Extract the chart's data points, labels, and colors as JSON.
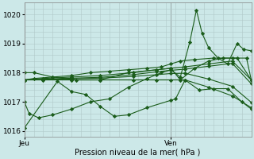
{
  "background_color": "#cce8e8",
  "grid_color": "#b0c8c8",
  "line_color": "#1a5c1a",
  "marker_color": "#1a5c1a",
  "xlabel": "Pression niveau de la mer( hPa )",
  "ylim": [
    1015.8,
    1020.4
  ],
  "yticks": [
    1016,
    1017,
    1018,
    1019,
    1020
  ],
  "xlim": [
    0,
    24
  ],
  "x_jeu": 0,
  "x_ven": 15.5,
  "xtick_pos": [
    0,
    15.5
  ],
  "xtick_labels": [
    "Jeu",
    "Ven"
  ],
  "series": [
    {
      "x": [
        0,
        0.5,
        1.5,
        3,
        5,
        7,
        9,
        11,
        13,
        14.5,
        15.5,
        16.5,
        17.5,
        18.2,
        18.8,
        19.5,
        20.5,
        21.5,
        22.5,
        23.2,
        24
      ],
      "y": [
        1017.0,
        1016.6,
        1016.45,
        1016.55,
        1016.75,
        1017.0,
        1017.1,
        1017.5,
        1017.8,
        1018.0,
        1018.1,
        1017.85,
        1019.05,
        1020.15,
        1019.35,
        1018.85,
        1018.5,
        1018.3,
        1019.0,
        1018.8,
        1018.75
      ]
    },
    {
      "x": [
        0,
        1,
        3,
        5.5,
        8,
        11,
        14,
        15.5,
        16.5,
        18,
        19.5,
        21,
        22.5,
        24
      ],
      "y": [
        1018.0,
        1018.0,
        1017.85,
        1017.75,
        1017.75,
        1018.0,
        1018.1,
        1018.15,
        1017.75,
        1018.15,
        1018.4,
        1018.5,
        1018.5,
        1017.75
      ]
    },
    {
      "x": [
        0,
        2,
        5,
        8,
        11.5,
        14,
        15.5,
        17,
        19.5,
        22,
        24
      ],
      "y": [
        1017.75,
        1017.8,
        1017.85,
        1017.9,
        1018.0,
        1018.1,
        1018.15,
        1018.2,
        1018.3,
        1018.4,
        1017.75
      ]
    },
    {
      "x": [
        0,
        2,
        5,
        8,
        11.5,
        14,
        15.5,
        17,
        19.5,
        22,
        24
      ],
      "y": [
        1017.75,
        1017.77,
        1017.81,
        1017.84,
        1017.93,
        1018.03,
        1018.08,
        1018.12,
        1018.22,
        1018.32,
        1017.62
      ]
    },
    {
      "x": [
        0,
        2,
        5,
        8,
        11.5,
        14,
        15.5,
        17,
        19.5,
        22,
        24
      ],
      "y": [
        1017.75,
        1017.76,
        1017.79,
        1017.81,
        1017.87,
        1017.93,
        1017.97,
        1017.98,
        1017.78,
        1017.53,
        1016.98
      ]
    },
    {
      "x": [
        0,
        2,
        5,
        8,
        11.5,
        14,
        15.5,
        17,
        19.5,
        22,
        24
      ],
      "y": [
        1017.75,
        1017.75,
        1017.75,
        1017.75,
        1017.75,
        1017.75,
        1017.75,
        1017.75,
        1017.5,
        1017.2,
        1016.8
      ]
    },
    {
      "x": [
        0,
        3.5,
        5,
        6.5,
        8,
        9.5,
        11,
        13,
        15.5,
        16,
        17,
        18.5,
        20,
        21.5,
        23,
        24
      ],
      "y": [
        1016.1,
        1017.7,
        1017.35,
        1017.25,
        1016.85,
        1016.5,
        1016.55,
        1016.8,
        1017.05,
        1017.1,
        1017.75,
        1017.4,
        1017.45,
        1017.45,
        1017.0,
        1016.75
      ]
    },
    {
      "x": [
        0,
        1,
        3,
        5,
        7,
        9,
        11,
        13,
        14.5,
        15.5,
        16.5,
        18,
        20,
        22,
        23.5,
        24
      ],
      "y": [
        1017.75,
        1017.8,
        1017.85,
        1017.9,
        1018.0,
        1018.05,
        1018.1,
        1018.15,
        1018.2,
        1018.3,
        1018.4,
        1018.45,
        1018.5,
        1018.5,
        1018.5,
        1017.75
      ]
    }
  ]
}
